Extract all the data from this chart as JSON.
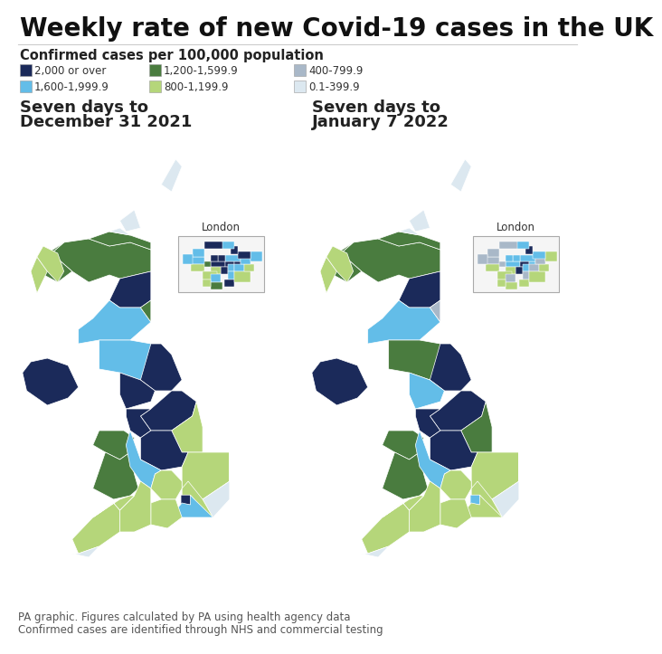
{
  "title": "Weekly rate of new Covid-19 cases in the UK",
  "subtitle": "Confirmed cases per 100,000 population",
  "legend_items": [
    {
      "label": "2,000 or over",
      "color": "#1b2a5a"
    },
    {
      "label": "1,200-1,599.9",
      "color": "#4a7c3f"
    },
    {
      "label": "400-799.9",
      "color": "#a9b8c8"
    },
    {
      "label": "1,600-1,999.9",
      "color": "#63bde8"
    },
    {
      "label": "800-1,199.9",
      "color": "#b5d67a"
    },
    {
      "label": "0.1-399.9",
      "color": "#dce8f0"
    }
  ],
  "map1_title_line1": "Seven days to",
  "map1_title_line2": "December 31 2021",
  "map2_title_line1": "Seven days to",
  "map2_title_line2": "January 7 2022",
  "footer_line1": "PA graphic. Figures calculated by PA using health agency data",
  "footer_line2": "Confirmed cases are identified through NHS and commercial testing",
  "bg_color": "#ffffff",
  "title_color": "#111111",
  "border_color": "#ffffff",
  "footer_color": "#555555",
  "london_label": "London",
  "color_2000over": "#1b2a5a",
  "color_1600_1999": "#63bde8",
  "color_1200_1599": "#4a7c3f",
  "color_800_1199": "#b5d67a",
  "color_400_799": "#a9b8c8",
  "color_01_399": "#dce8f0"
}
